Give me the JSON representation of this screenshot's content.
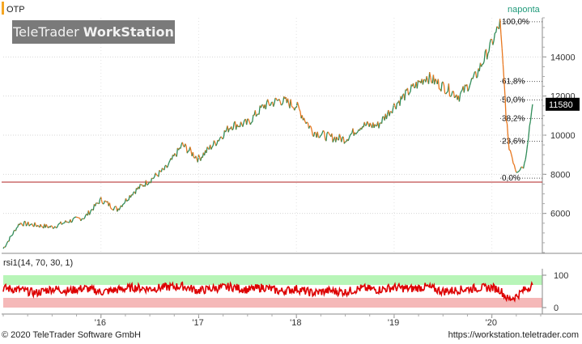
{
  "header": {
    "symbol": "OTP",
    "period": "naponta",
    "logo_regular": "TeleTrader ",
    "logo_bold": "WorkStation"
  },
  "colors": {
    "up": "#2e8b57",
    "down": "#e8771e",
    "support_line": "#b22222",
    "rsi_line": "#dd0000",
    "rsi_overbought_band": "#b8f5b8",
    "rsi_oversold_band": "#f5b8b8",
    "price_badge_bg": "#000000"
  },
  "footer": {
    "copyright": "© 2020 TeleTrader Software GmbH",
    "url": "https://workstation.teletrader.com"
  },
  "chart_data": [
    {
      "type": "line",
      "name": "price",
      "x_ticks": [
        "'16",
        "'17",
        "'18",
        "'19",
        "'20"
      ],
      "y_ticks": [
        6000,
        8000,
        10000,
        12000,
        14000
      ],
      "ylim": [
        4000,
        16000
      ],
      "xlim": [
        "2015-01",
        "2020-07"
      ],
      "last_price_label": "11580",
      "support_level": 7600,
      "fibonacci": {
        "levels": [
          "100,0%",
          "61,8%",
          "50,0%",
          "38,2%",
          "23,6%",
          "0,0%"
        ],
        "low": 7800,
        "high": 15800
      },
      "x": [
        "2015-01",
        "2015-03",
        "2015-05",
        "2015-07",
        "2015-09",
        "2015-11",
        "2016-01",
        "2016-03",
        "2016-05",
        "2016-07",
        "2016-09",
        "2016-11",
        "2017-01",
        "2017-03",
        "2017-05",
        "2017-07",
        "2017-09",
        "2017-11",
        "2018-01",
        "2018-03",
        "2018-05",
        "2018-07",
        "2018-09",
        "2018-11",
        "2019-01",
        "2019-03",
        "2019-05",
        "2019-07",
        "2019-09",
        "2019-11",
        "2020-01",
        "2020-02",
        "2020-03",
        "2020-04",
        "2020-05",
        "2020-06"
      ],
      "values": [
        4200,
        5500,
        5400,
        5300,
        5600,
        5800,
        6700,
        6200,
        7100,
        7700,
        8300,
        9500,
        8800,
        9600,
        10500,
        10600,
        11500,
        11800,
        11500,
        10200,
        9900,
        9800,
        10500,
        10500,
        11500,
        12300,
        13000,
        12500,
        12000,
        13000,
        14700,
        15700,
        9600,
        8200,
        8500,
        11580
      ]
    },
    {
      "type": "line",
      "name": "rsi",
      "title": "rsi1(14, 70, 30, 1)",
      "y_ticks": [
        0,
        100
      ],
      "ylim": [
        -20,
        120
      ],
      "overbought": 70,
      "oversold": 30,
      "x": [
        "2015-01",
        "2015-03",
        "2015-05",
        "2015-07",
        "2015-09",
        "2015-11",
        "2016-01",
        "2016-03",
        "2016-05",
        "2016-07",
        "2016-09",
        "2016-11",
        "2017-01",
        "2017-03",
        "2017-05",
        "2017-07",
        "2017-09",
        "2017-11",
        "2018-01",
        "2018-03",
        "2018-05",
        "2018-07",
        "2018-09",
        "2018-11",
        "2019-01",
        "2019-03",
        "2019-05",
        "2019-07",
        "2019-09",
        "2019-11",
        "2020-01",
        "2020-02",
        "2020-03",
        "2020-04",
        "2020-05",
        "2020-06"
      ],
      "values": [
        60,
        55,
        45,
        58,
        52,
        60,
        48,
        55,
        62,
        58,
        63,
        66,
        52,
        60,
        64,
        55,
        63,
        50,
        58,
        45,
        52,
        48,
        60,
        55,
        62,
        58,
        64,
        50,
        55,
        60,
        62,
        55,
        25,
        35,
        55,
        70
      ]
    }
  ]
}
